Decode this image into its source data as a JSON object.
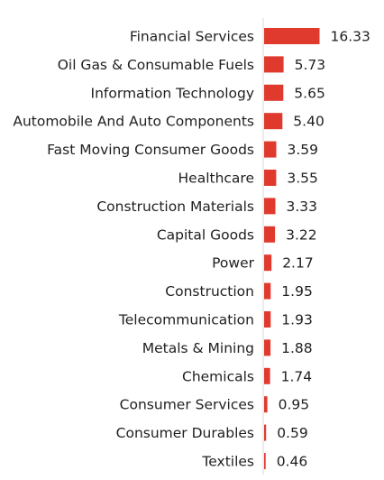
{
  "chart_data": {
    "type": "bar",
    "orientation": "horizontal",
    "categories": [
      "Financial Services",
      "Oil Gas & Consumable Fuels",
      "Information Technology",
      "Automobile And Auto Components",
      "Fast Moving Consumer Goods",
      "Healthcare",
      "Construction Materials",
      "Capital Goods",
      "Power",
      "Construction",
      "Telecommunication",
      "Metals & Mining",
      "Chemicals",
      "Consumer Services",
      "Consumer Durables",
      "Textiles"
    ],
    "values": [
      16.33,
      5.73,
      5.65,
      5.4,
      3.59,
      3.55,
      3.33,
      3.22,
      2.17,
      1.95,
      1.93,
      1.88,
      1.74,
      0.95,
      0.59,
      0.46
    ],
    "value_labels": [
      "16.33",
      "5.73",
      "5.65",
      "5.40",
      "3.59",
      "3.55",
      "3.33",
      "3.22",
      "2.17",
      "1.95",
      "1.93",
      "1.88",
      "1.74",
      "0.95",
      "0.59",
      "0.46"
    ],
    "bar_color": "#e03a2e",
    "axis_color": "#d9d9d9",
    "grid": false,
    "legend": "none"
  }
}
